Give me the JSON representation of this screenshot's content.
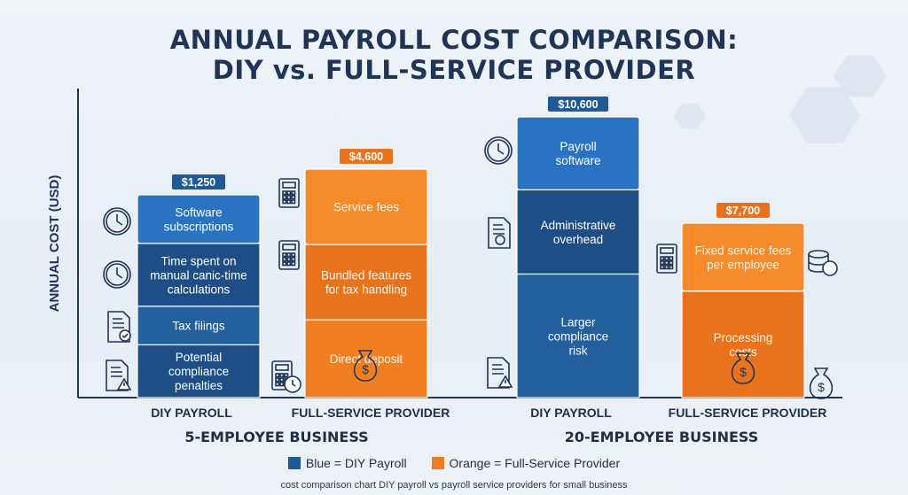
{
  "title_line1": "ANNUAL PAYROLL COST COMPARISON:",
  "title_line2": "DIY vs. FULL-SERVICE PROVIDER",
  "y_axis_label": "ANNUAL COST (USD)",
  "legend": [
    {
      "label": "Blue = DIY Payroll",
      "color": "#1f5a96"
    },
    {
      "label": "Orange = Full-Service Provider",
      "color": "#ef7d24"
    }
  ],
  "caption": "cost comparison chart DIY payroll vs payroll service providers for small business",
  "colors": {
    "blue_light": "#2a73c0",
    "blue_dark": "#1d4f86",
    "orange_light": "#f48a2a",
    "orange_dark": "#e8731c",
    "axis": "#1f3556"
  },
  "chart_data": {
    "type": "bar",
    "stacked": true,
    "groups": [
      {
        "name": "5-EMPLOYEE BUSINESS",
        "bars": [
          {
            "category": "DIY PAYROLL",
            "series": "Blue = DIY Payroll",
            "total": 1250,
            "total_label": "$1,250",
            "segments": [
              "Software subscriptions",
              "Time spent on manual canic-time calculations",
              "Tax filings",
              "Potential compliance penalties"
            ],
            "icons": [
              "clock-icon",
              "clock-icon",
              "document-check-icon",
              "document-warning-icon"
            ]
          },
          {
            "category": "FULL-SERVICE PROVIDER",
            "series": "Orange = Full-Service Provider",
            "total": 4600,
            "total_label": "$4,600",
            "segments": [
              "Service fees",
              "Bundled features for tax handling",
              "Direct deposit"
            ],
            "icons": [
              "calculator-icon",
              "calculator-icon",
              "calculator-clock-icon"
            ]
          }
        ]
      },
      {
        "name": "20-EMPLOYEE BUSINESS",
        "bars": [
          {
            "category": "DIY PAYROLL",
            "series": "Blue = DIY Payroll",
            "total": 10600,
            "total_label": "$10,600",
            "segments": [
              "Payroll software",
              "Administrative overhead",
              "Larger compliance risk"
            ],
            "icons": [
              "clock-icon",
              "document-seal-icon",
              "document-warning-icon"
            ]
          },
          {
            "category": "FULL-SERVICE PROVIDER",
            "series": "Orange = Full-Service Provider",
            "total": 7700,
            "total_label": "$7,700",
            "segments": [
              "Fixed service fees per employee",
              "Processing costs"
            ],
            "icons": [
              "calculator-icon",
              "coins-icon",
              "money-bag-icon"
            ]
          }
        ]
      }
    ]
  }
}
